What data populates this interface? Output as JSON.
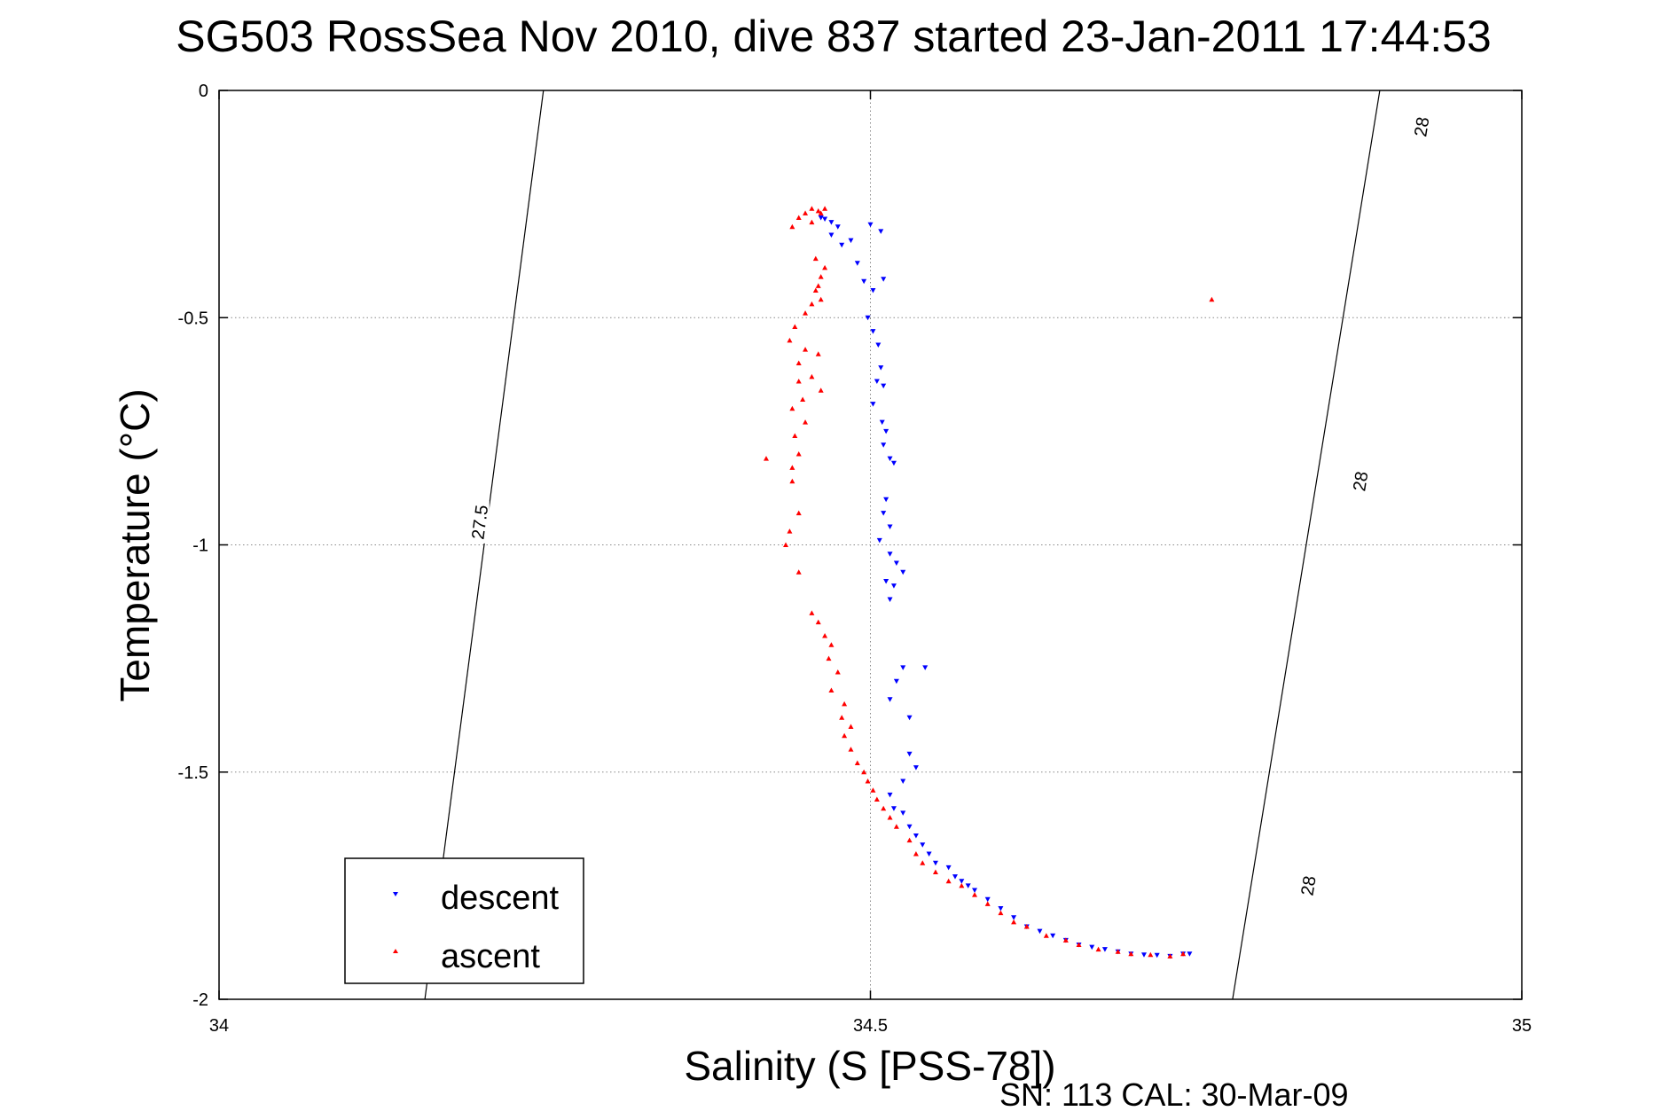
{
  "chart_data": {
    "type": "scatter",
    "title": "SG503 RossSea Nov 2010, dive 837 started 23-Jan-2011 17:44:53",
    "xlabel": "Salinity (S [PSS-78])",
    "ylabel": "Temperature (°C)",
    "xlim": [
      34,
      35
    ],
    "ylim": [
      -2,
      0
    ],
    "x_ticks": [
      34,
      34.5,
      35
    ],
    "x_tick_labels": [
      "34",
      "34.5",
      "35"
    ],
    "y_ticks": [
      0,
      -0.5,
      -1,
      -1.5,
      -2
    ],
    "y_tick_labels": [
      "0",
      "-0.5",
      "-1",
      "-1.5",
      "-2"
    ],
    "grid": true,
    "legend_position": "bottom-left",
    "footer": "SN: 113  CAL: 30-Mar-09",
    "contours": [
      {
        "label": "27.5",
        "line": [
          [
            34.158,
            -2
          ],
          [
            34.249,
            0
          ]
        ],
        "labels_at": [
          [
            34.2,
            -0.95
          ]
        ]
      },
      {
        "label": "28",
        "line": [
          [
            34.778,
            -2
          ],
          [
            34.891,
            0
          ]
        ],
        "labels_at": [
          [
            34.836,
            -1.75
          ],
          [
            34.876,
            -0.86
          ],
          [
            34.923,
            -0.08
          ]
        ]
      }
    ],
    "series": [
      {
        "name": "descent",
        "color": "#0000ff",
        "marker": "triangle-down",
        "points": [
          [
            34.462,
            -0.28
          ],
          [
            34.465,
            -0.283
          ],
          [
            34.47,
            -0.29
          ],
          [
            34.475,
            -0.3
          ],
          [
            34.47,
            -0.318
          ],
          [
            34.485,
            -0.33
          ],
          [
            34.5,
            -0.295
          ],
          [
            34.508,
            -0.31
          ],
          [
            34.478,
            -0.34
          ],
          [
            34.49,
            -0.38
          ],
          [
            34.495,
            -0.42
          ],
          [
            34.502,
            -0.44
          ],
          [
            34.51,
            -0.415
          ],
          [
            34.498,
            -0.5
          ],
          [
            34.502,
            -0.53
          ],
          [
            34.506,
            -0.56
          ],
          [
            34.508,
            -0.61
          ],
          [
            34.505,
            -0.64
          ],
          [
            34.51,
            -0.65
          ],
          [
            34.502,
            -0.69
          ],
          [
            34.509,
            -0.73
          ],
          [
            34.512,
            -0.75
          ],
          [
            34.51,
            -0.78
          ],
          [
            34.515,
            -0.81
          ],
          [
            34.518,
            -0.82
          ],
          [
            34.512,
            -0.9
          ],
          [
            34.51,
            -0.93
          ],
          [
            34.515,
            -0.96
          ],
          [
            34.507,
            -0.99
          ],
          [
            34.515,
            -1.02
          ],
          [
            34.52,
            -1.04
          ],
          [
            34.525,
            -1.06
          ],
          [
            34.512,
            -1.08
          ],
          [
            34.518,
            -1.09
          ],
          [
            34.515,
            -1.12
          ],
          [
            34.525,
            -1.27
          ],
          [
            34.52,
            -1.3
          ],
          [
            34.515,
            -1.34
          ],
          [
            34.542,
            -1.27
          ],
          [
            34.53,
            -1.38
          ],
          [
            34.53,
            -1.46
          ],
          [
            34.535,
            -1.49
          ],
          [
            34.525,
            -1.52
          ],
          [
            34.515,
            -1.55
          ],
          [
            34.518,
            -1.58
          ],
          [
            34.525,
            -1.59
          ],
          [
            34.53,
            -1.62
          ],
          [
            34.535,
            -1.64
          ],
          [
            34.54,
            -1.66
          ],
          [
            34.545,
            -1.68
          ],
          [
            34.55,
            -1.7
          ],
          [
            34.56,
            -1.71
          ],
          [
            34.565,
            -1.73
          ],
          [
            34.57,
            -1.74
          ],
          [
            34.575,
            -1.75
          ],
          [
            34.58,
            -1.76
          ],
          [
            34.59,
            -1.78
          ],
          [
            34.6,
            -1.8
          ],
          [
            34.61,
            -1.82
          ],
          [
            34.62,
            -1.84
          ],
          [
            34.63,
            -1.85
          ],
          [
            34.64,
            -1.86
          ],
          [
            34.65,
            -1.87
          ],
          [
            34.66,
            -1.88
          ],
          [
            34.67,
            -1.885
          ],
          [
            34.68,
            -1.89
          ],
          [
            34.69,
            -1.895
          ],
          [
            34.7,
            -1.9
          ],
          [
            34.71,
            -1.902
          ],
          [
            34.72,
            -1.903
          ],
          [
            34.73,
            -1.905
          ],
          [
            34.74,
            -1.9
          ],
          [
            34.745,
            -1.9
          ]
        ]
      },
      {
        "name": "ascent",
        "color": "#ff0000",
        "marker": "triangle-up",
        "points": [
          [
            34.455,
            -0.26
          ],
          [
            34.46,
            -0.265
          ],
          [
            34.465,
            -0.26
          ],
          [
            34.462,
            -0.27
          ],
          [
            34.45,
            -0.27
          ],
          [
            34.445,
            -0.28
          ],
          [
            34.455,
            -0.29
          ],
          [
            34.44,
            -0.3
          ],
          [
            34.458,
            -0.37
          ],
          [
            34.465,
            -0.39
          ],
          [
            34.462,
            -0.41
          ],
          [
            34.46,
            -0.43
          ],
          [
            34.458,
            -0.44
          ],
          [
            34.462,
            -0.46
          ],
          [
            34.455,
            -0.47
          ],
          [
            34.45,
            -0.49
          ],
          [
            34.442,
            -0.52
          ],
          [
            34.438,
            -0.55
          ],
          [
            34.45,
            -0.57
          ],
          [
            34.46,
            -0.58
          ],
          [
            34.445,
            -0.6
          ],
          [
            34.455,
            -0.63
          ],
          [
            34.445,
            -0.64
          ],
          [
            34.462,
            -0.66
          ],
          [
            34.448,
            -0.68
          ],
          [
            34.44,
            -0.7
          ],
          [
            34.45,
            -0.73
          ],
          [
            34.442,
            -0.76
          ],
          [
            34.445,
            -0.8
          ],
          [
            34.44,
            -0.83
          ],
          [
            34.42,
            -0.81
          ],
          [
            34.44,
            -0.86
          ],
          [
            34.445,
            -0.93
          ],
          [
            34.438,
            -0.97
          ],
          [
            34.435,
            -1.0
          ],
          [
            34.445,
            -1.06
          ],
          [
            34.455,
            -1.15
          ],
          [
            34.46,
            -1.17
          ],
          [
            34.465,
            -1.2
          ],
          [
            34.47,
            -1.22
          ],
          [
            34.468,
            -1.25
          ],
          [
            34.475,
            -1.28
          ],
          [
            34.47,
            -1.32
          ],
          [
            34.48,
            -1.35
          ],
          [
            34.478,
            -1.38
          ],
          [
            34.485,
            -1.4
          ],
          [
            34.48,
            -1.42
          ],
          [
            34.485,
            -1.45
          ],
          [
            34.49,
            -1.48
          ],
          [
            34.495,
            -1.5
          ],
          [
            34.498,
            -1.52
          ],
          [
            34.502,
            -1.54
          ],
          [
            34.505,
            -1.56
          ],
          [
            34.51,
            -1.58
          ],
          [
            34.515,
            -1.6
          ],
          [
            34.52,
            -1.62
          ],
          [
            34.53,
            -1.65
          ],
          [
            34.535,
            -1.68
          ],
          [
            34.54,
            -1.7
          ],
          [
            34.55,
            -1.72
          ],
          [
            34.56,
            -1.74
          ],
          [
            34.57,
            -1.75
          ],
          [
            34.58,
            -1.77
          ],
          [
            34.59,
            -1.79
          ],
          [
            34.6,
            -1.81
          ],
          [
            34.61,
            -1.83
          ],
          [
            34.62,
            -1.84
          ],
          [
            34.635,
            -1.86
          ],
          [
            34.65,
            -1.87
          ],
          [
            34.66,
            -1.88
          ],
          [
            34.675,
            -1.89
          ],
          [
            34.69,
            -1.895
          ],
          [
            34.7,
            -1.9
          ],
          [
            34.715,
            -1.902
          ],
          [
            34.73,
            -1.905
          ],
          [
            34.74,
            -1.9
          ],
          [
            34.762,
            -0.46
          ]
        ]
      }
    ]
  }
}
